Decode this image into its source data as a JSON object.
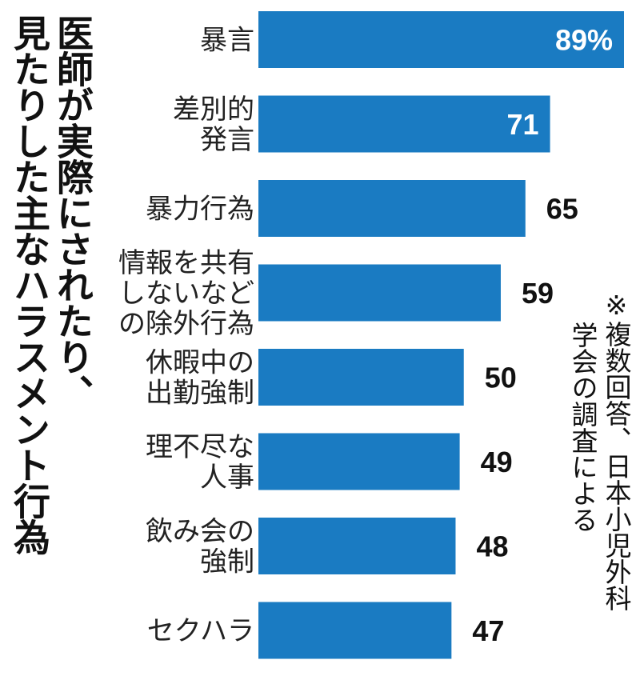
{
  "title_lines": [
    "医師が実際にされたり、",
    "見たりした主なハラスメント行為"
  ],
  "note_lines": [
    "※複数回答、日本小児外科",
    "学会の調査による"
  ],
  "chart_data": {
    "type": "bar",
    "orientation": "horizontal",
    "title": "医師が実際にされたり、見たりした主なハラスメント行為",
    "categories": [
      [
        "暴言"
      ],
      [
        "差別的",
        "発言"
      ],
      [
        "暴力行為"
      ],
      [
        "情報を共有",
        "しないなど",
        "の除外行為"
      ],
      [
        "休暇中の",
        "出勤強制"
      ],
      [
        "理不尽な",
        "人事"
      ],
      [
        "飲み会の",
        "強制"
      ],
      [
        "セクハラ"
      ]
    ],
    "values": [
      89,
      71,
      65,
      59,
      50,
      49,
      48,
      47
    ],
    "value_labels": [
      "89%",
      "71",
      "65",
      "59",
      "50",
      "49",
      "48",
      "47"
    ],
    "unit": "%",
    "xlim": [
      0,
      89
    ],
    "bar_color": "#1a7bc2",
    "inside_label_color": "#ffffff",
    "outside_label_color": "#111111",
    "grid": false
  }
}
